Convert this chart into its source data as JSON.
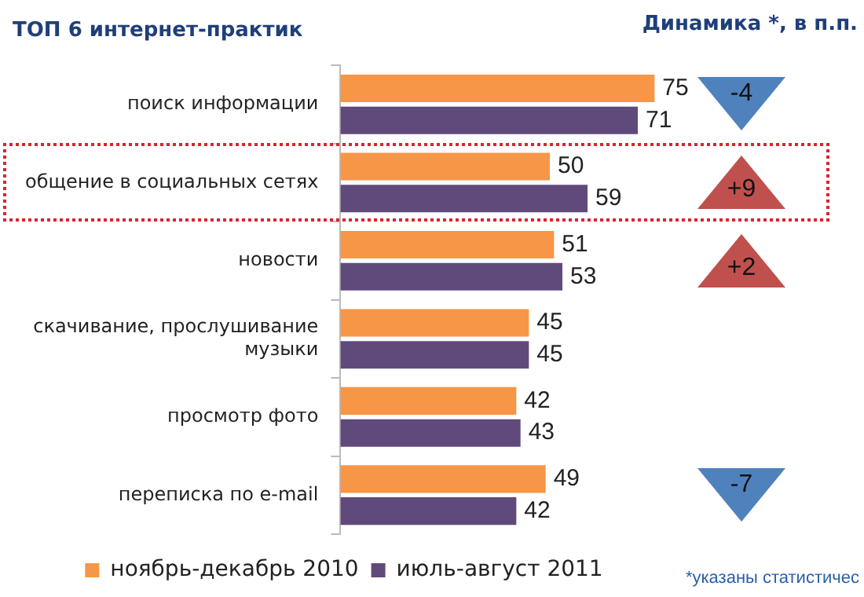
{
  "chart_data": {
    "type": "bar",
    "orientation": "horizontal",
    "title": "ТОП 6 интернет-практик",
    "categories": [
      "поиск информации",
      "общение в социальных сетях",
      "новости",
      "скачивание, прослушивание музыки",
      "просмотр фото",
      "переписка по e-mail"
    ],
    "series": [
      {
        "name": "ноябрь-декабрь 2010",
        "color": "#f79646",
        "values": [
          75,
          50,
          51,
          45,
          42,
          49
        ]
      },
      {
        "name": "июль-август 2011",
        "color": "#604a7b",
        "values": [
          71,
          59,
          53,
          45,
          43,
          42
        ]
      }
    ],
    "relative": false,
    "data_labels": true,
    "legend": "bottom",
    "grid": false,
    "annotations": [
      "Динамика *, в п.п.",
      "-4",
      "+9",
      "+2",
      "-7",
      "*указаны статистичес"
    ]
  }
}
